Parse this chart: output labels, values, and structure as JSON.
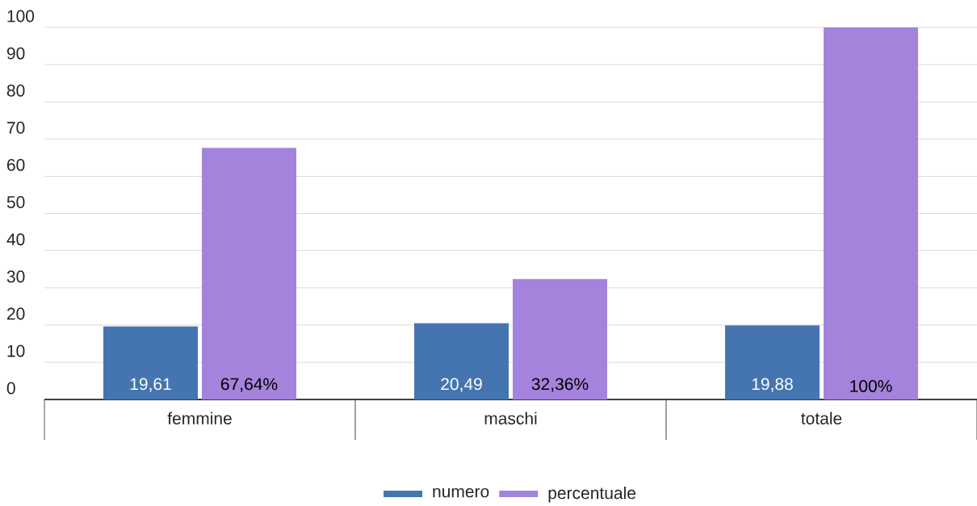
{
  "chart_data": {
    "type": "bar",
    "categories": [
      "femmine",
      "maschi",
      "totale"
    ],
    "series": [
      {
        "name": "numero",
        "color": "#4575b0",
        "values": [
          19.61,
          20.49,
          19.88
        ],
        "value_labels": [
          "19,61",
          "20,49",
          "19,88"
        ]
      },
      {
        "name": "percentuale",
        "color": "#a383dc",
        "values": [
          67.64,
          32.36,
          100
        ],
        "value_labels": [
          "67,64%",
          "32,36%",
          "100%"
        ]
      }
    ],
    "ylim": [
      0,
      100
    ],
    "yticks": [
      0,
      10,
      20,
      30,
      40,
      50,
      60,
      70,
      80,
      90,
      100
    ],
    "grid": "y",
    "legend": "bottom"
  }
}
